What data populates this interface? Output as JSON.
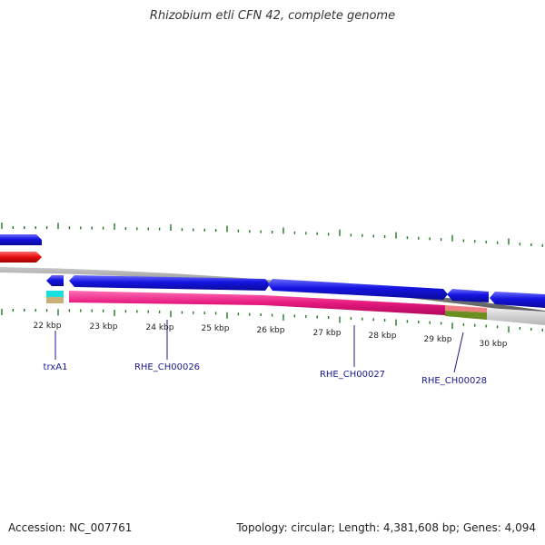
{
  "header": {
    "title": "Rhizobium etli CFN 42, complete genome"
  },
  "footer": {
    "accession": "Accession: NC_007761",
    "summary": "Topology: circular; Length: 4,381,608 bp; Genes: 4,094"
  },
  "ruler_labels": [
    "22 kbp",
    "23 kbp",
    "24 kbp",
    "25 kbp",
    "26 kbp",
    "27 kbp",
    "28 kbp",
    "29 kbp",
    "30 kbp"
  ],
  "genes": [
    {
      "label": "trxA1"
    },
    {
      "label": "RHE_CH00026"
    },
    {
      "label": "RHE_CH00027"
    },
    {
      "label": "RHE_CH00028"
    }
  ],
  "colors": {
    "cds_blue": "#1a1ae6",
    "cds_red": "#e60d0d",
    "gene_pink": "#e6197f",
    "tick_green": "#1f7a1f",
    "backbone_gray": "#8a8a8a",
    "label_navy": "#1a1a8c"
  }
}
